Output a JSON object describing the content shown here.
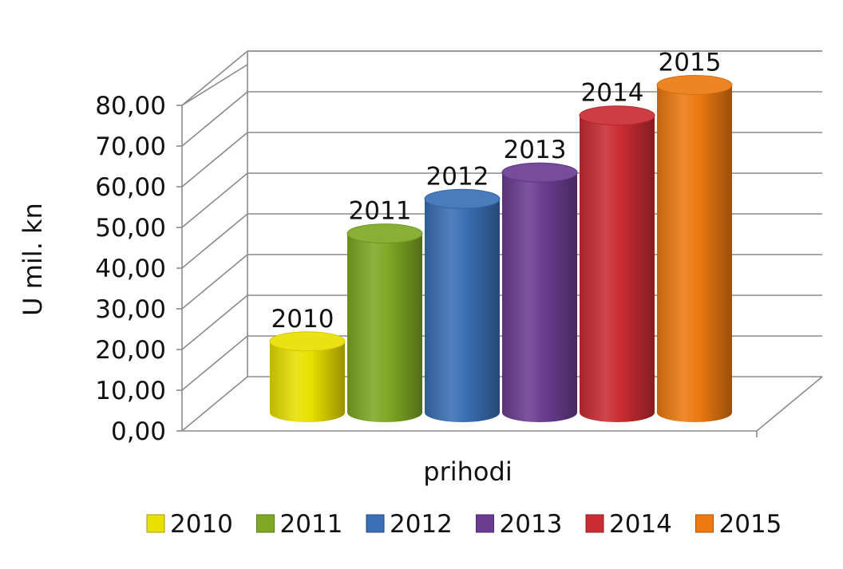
{
  "chart_data": {
    "type": "bar",
    "categories": [
      "prihodi"
    ],
    "xlabel": "prihodi",
    "ylabel": "U mil. kn",
    "ylim": [
      0,
      80
    ],
    "yticks": [
      "0,00",
      "10,00",
      "20,00",
      "30,00",
      "40,00",
      "50,00",
      "60,00",
      "70,00",
      "80,00"
    ],
    "grid": true,
    "legend_position": "bottom",
    "bar_shape": "3d-cylinder",
    "series": [
      {
        "name": "2010",
        "values": [
          17.5
        ],
        "color": "#e8e000"
      },
      {
        "name": "2011",
        "values": [
          44
        ],
        "color": "#7fa824"
      },
      {
        "name": "2012",
        "values": [
          52.5
        ],
        "color": "#3a6fb4"
      },
      {
        "name": "2013",
        "values": [
          59
        ],
        "color": "#6b3d91"
      },
      {
        "name": "2014",
        "values": [
          73
        ],
        "color": "#c92c33"
      },
      {
        "name": "2015",
        "values": [
          80.5
        ],
        "color": "#ec7a11"
      }
    ]
  }
}
